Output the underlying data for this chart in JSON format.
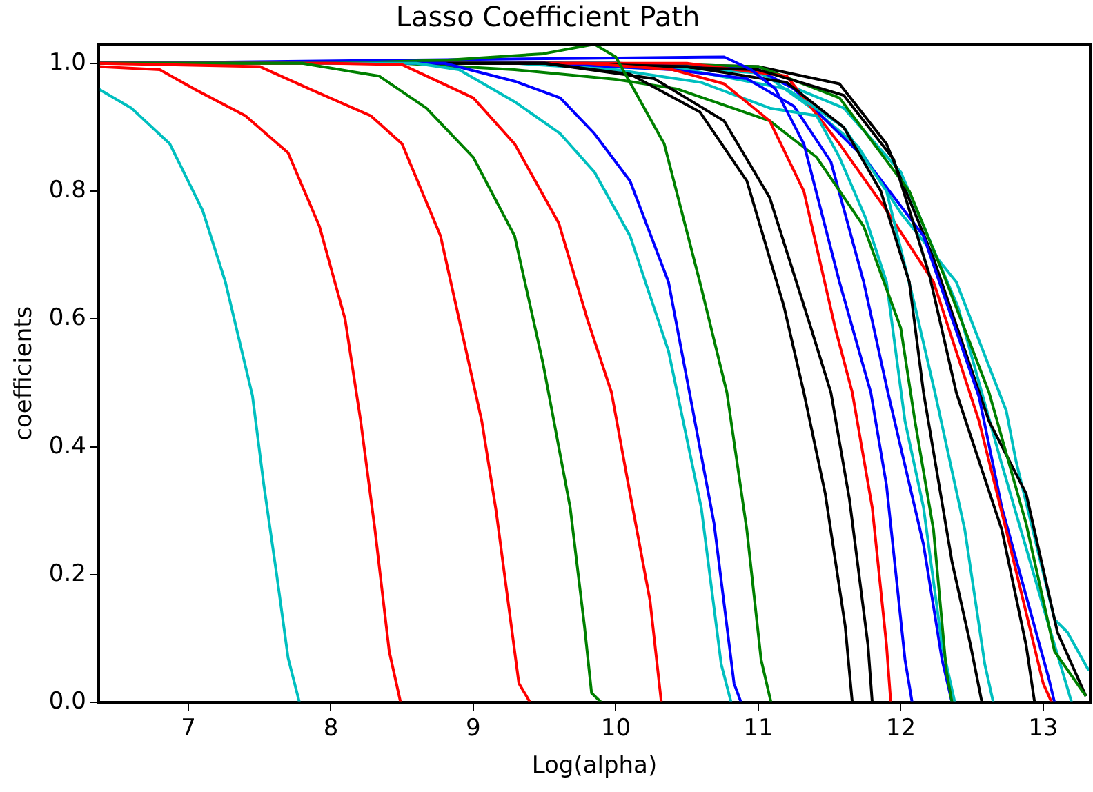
{
  "chart_data": {
    "type": "line",
    "title": "Lasso Coefficient Path",
    "xlabel": "Log(alpha)",
    "ylabel": "coefficients",
    "xlim": [
      6.37,
      13.33
    ],
    "ylim": [
      0,
      1.03
    ],
    "xticks": [
      7,
      8,
      9,
      10,
      11,
      12,
      13
    ],
    "yticks": [
      {
        "value": 0,
        "label": "0.0"
      },
      {
        "value": 0.2,
        "label": "0.2"
      },
      {
        "value": 0.4,
        "label": "0.4"
      },
      {
        "value": 0.6,
        "label": "0.6"
      },
      {
        "value": 0.8,
        "label": "0.8"
      },
      {
        "value": 1,
        "label": "1.0"
      }
    ],
    "grid": false,
    "legend": false,
    "marker": "none",
    "line_style": "solid",
    "series": [
      {
        "color": "#00bfbf",
        "x": [
          6.37,
          6.6,
          6.87,
          7.1,
          7.26,
          7.45,
          7.53,
          7.62,
          7.7,
          7.78
        ],
        "values": [
          0.96,
          0.93,
          0.874,
          0.77,
          0.658,
          0.48,
          0.34,
          0.2,
          0.07,
          0
        ]
      },
      {
        "color": "#ff0000",
        "x": [
          6.37,
          6.8,
          7.04,
          7.4,
          7.7,
          7.92,
          8.1,
          8.21,
          8.31,
          8.41,
          8.49
        ],
        "values": [
          0.995,
          0.99,
          0.96,
          0.918,
          0.86,
          0.745,
          0.6,
          0.44,
          0.27,
          0.08,
          0
        ]
      },
      {
        "color": "#ff0000",
        "x": [
          6.37,
          7.5,
          7.85,
          8.28,
          8.5,
          8.77,
          9.06,
          9.16,
          9.32,
          9.4
        ],
        "values": [
          1.0,
          0.995,
          0.96,
          0.918,
          0.874,
          0.73,
          0.44,
          0.3,
          0.03,
          0
        ]
      },
      {
        "color": "#008000",
        "x": [
          6.37,
          7.8,
          8.34,
          8.67,
          9.0,
          9.29,
          9.49,
          9.68,
          9.78,
          9.83,
          9.9
        ],
        "values": [
          1.0,
          1.0,
          0.98,
          0.93,
          0.853,
          0.73,
          0.53,
          0.305,
          0.12,
          0.015,
          0
        ]
      },
      {
        "color": "#ff0000",
        "x": [
          6.37,
          8.0,
          8.5,
          9.0,
          9.29,
          9.6,
          9.8,
          9.97,
          10.1,
          10.24,
          10.32
        ],
        "values": [
          1.0,
          1.0,
          0.998,
          0.946,
          0.874,
          0.75,
          0.6,
          0.485,
          0.327,
          0.16,
          0
        ]
      },
      {
        "color": "#00bfbf",
        "x": [
          6.37,
          8.6,
          8.9,
          9.29,
          9.61,
          9.85,
          10.1,
          10.37,
          10.6,
          10.74,
          10.81
        ],
        "values": [
          1.0,
          1.0,
          0.99,
          0.94,
          0.89,
          0.83,
          0.73,
          0.55,
          0.305,
          0.06,
          0
        ]
      },
      {
        "color": "#0000ff",
        "x": [
          6.37,
          8.8,
          9.29,
          9.61,
          9.85,
          10.1,
          10.37,
          10.53,
          10.69,
          10.83,
          10.88
        ],
        "values": [
          1.0,
          1.0,
          0.972,
          0.946,
          0.89,
          0.816,
          0.658,
          0.47,
          0.28,
          0.03,
          0
        ]
      },
      {
        "color": "#008000",
        "x": [
          6.37,
          8.0,
          8.8,
          9.49,
          9.85,
          10.0,
          10.34,
          10.59,
          10.78,
          10.92,
          11.02,
          11.09
        ],
        "values": [
          1.0,
          1.0,
          1.005,
          1.015,
          1.03,
          1.01,
          0.874,
          0.658,
          0.485,
          0.27,
          0.067,
          0
        ]
      },
      {
        "color": "#000000",
        "x": [
          6.37,
          9.5,
          10.1,
          10.59,
          10.92,
          11.18,
          11.32,
          11.47,
          11.61,
          11.66
        ],
        "values": [
          1.0,
          1.0,
          0.983,
          0.924,
          0.816,
          0.62,
          0.485,
          0.327,
          0.12,
          0
        ]
      },
      {
        "color": "#000000",
        "x": [
          6.37,
          9.5,
          10.27,
          10.76,
          11.08,
          11.37,
          11.51,
          11.64,
          11.77,
          11.8
        ],
        "values": [
          1.0,
          1.0,
          0.976,
          0.91,
          0.79,
          0.586,
          0.485,
          0.318,
          0.09,
          0
        ]
      },
      {
        "color": "#ff0000",
        "x": [
          6.37,
          9.8,
          10.4,
          10.76,
          11.08,
          11.32,
          11.54,
          11.66,
          11.8,
          11.9,
          11.93
        ],
        "values": [
          1.0,
          1.0,
          0.99,
          0.968,
          0.91,
          0.8,
          0.586,
          0.485,
          0.305,
          0.09,
          0
        ]
      },
      {
        "color": "#0000ff",
        "x": [
          6.37,
          9.78,
          10.76,
          10.95,
          11.12,
          11.32,
          11.57,
          11.79,
          11.9,
          12.03,
          12.08
        ],
        "values": [
          1.0,
          1.008,
          1.01,
          0.99,
          0.96,
          0.874,
          0.658,
          0.485,
          0.34,
          0.067,
          0
        ]
      },
      {
        "color": "#008000",
        "x": [
          6.37,
          8.5,
          9.29,
          10.0,
          10.43,
          11.08,
          11.41,
          11.74,
          12.0,
          12.1,
          12.23,
          12.32,
          12.36
        ],
        "values": [
          1.0,
          1.0,
          0.99,
          0.975,
          0.96,
          0.91,
          0.853,
          0.745,
          0.586,
          0.44,
          0.27,
          0.05,
          0
        ]
      },
      {
        "color": "#00bfbf",
        "x": [
          6.37,
          9.3,
          10.0,
          10.6,
          11.08,
          11.41,
          11.57,
          11.75,
          11.9,
          12.03,
          12.16,
          12.29,
          12.38
        ],
        "values": [
          1.0,
          1.0,
          0.99,
          0.97,
          0.93,
          0.918,
          0.853,
          0.76,
          0.658,
          0.44,
          0.305,
          0.09,
          0
        ]
      },
      {
        "color": "#0000ff",
        "x": [
          6.37,
          9.5,
          10.4,
          10.92,
          11.25,
          11.51,
          11.74,
          11.91,
          12.16,
          12.29,
          12.36
        ],
        "values": [
          1.0,
          1.0,
          0.99,
          0.976,
          0.933,
          0.846,
          0.658,
          0.485,
          0.247,
          0.067,
          0
        ]
      },
      {
        "color": "#000000",
        "x": [
          6.37,
          9.5,
          10.5,
          11.2,
          11.6,
          11.86,
          12.06,
          12.16,
          12.36,
          12.49,
          12.57
        ],
        "values": [
          1.0,
          1.0,
          0.995,
          0.97,
          0.9,
          0.8,
          0.658,
          0.485,
          0.22,
          0.09,
          0
        ]
      },
      {
        "color": "#00bfbf",
        "x": [
          6.37,
          9.3,
          10.5,
          11.2,
          11.6,
          11.9,
          12.1,
          12.24,
          12.45,
          12.59,
          12.65
        ],
        "values": [
          1.0,
          1.0,
          0.99,
          0.96,
          0.9,
          0.8,
          0.62,
          0.485,
          0.27,
          0.06,
          0
        ]
      },
      {
        "color": "#000000",
        "x": [
          6.37,
          9.6,
          11.0,
          11.6,
          11.95,
          12.2,
          12.39,
          12.71,
          12.88,
          12.94
        ],
        "values": [
          1.0,
          1.0,
          0.99,
          0.95,
          0.85,
          0.67,
          0.485,
          0.27,
          0.09,
          0
        ]
      },
      {
        "color": "#ff0000",
        "x": [
          6.37,
          9.5,
          10.5,
          11.2,
          11.57,
          11.9,
          12.23,
          12.55,
          12.74,
          13.0,
          13.06
        ],
        "values": [
          1.0,
          1.0,
          1.0,
          0.98,
          0.874,
          0.77,
          0.658,
          0.44,
          0.27,
          0.03,
          0
        ]
      },
      {
        "color": "#0000ff",
        "x": [
          6.37,
          10.0,
          11.0,
          11.25,
          11.74,
          12.16,
          12.55,
          12.71,
          13.04,
          13.08
        ],
        "values": [
          1.0,
          1.0,
          0.99,
          0.96,
          0.853,
          0.73,
          0.478,
          0.305,
          0.037,
          0
        ]
      },
      {
        "color": "#008000",
        "x": [
          6.37,
          10.0,
          11.0,
          11.57,
          12.06,
          12.3,
          12.62,
          12.88,
          13.08,
          13.3
        ],
        "values": [
          1.0,
          1.0,
          0.995,
          0.946,
          0.8,
          0.67,
          0.485,
          0.28,
          0.08,
          0.01
        ]
      },
      {
        "color": "#000000",
        "x": [
          6.37,
          10.0,
          11.0,
          11.57,
          11.9,
          12.23,
          12.62,
          12.88,
          13.1,
          13.3
        ],
        "values": [
          1.0,
          1.0,
          0.995,
          0.968,
          0.874,
          0.695,
          0.44,
          0.327,
          0.11,
          0.01
        ]
      },
      {
        "color": "#00bfbf",
        "x": [
          6.37,
          10.0,
          11.0,
          11.41,
          11.7,
          12.0,
          12.39,
          12.74,
          12.81,
          13.08,
          13.17,
          13.32
        ],
        "values": [
          1.0,
          1.0,
          0.99,
          0.924,
          0.87,
          0.766,
          0.658,
          0.457,
          0.377,
          0.13,
          0.11,
          0.05
        ]
      },
      {
        "color": "#00bfbf",
        "x": [
          6.37,
          10.0,
          11.0,
          11.6,
          12.0,
          12.4,
          12.7,
          13.0,
          13.2
        ],
        "values": [
          1.0,
          1.0,
          0.985,
          0.93,
          0.83,
          0.62,
          0.38,
          0.15,
          0
        ]
      }
    ]
  }
}
